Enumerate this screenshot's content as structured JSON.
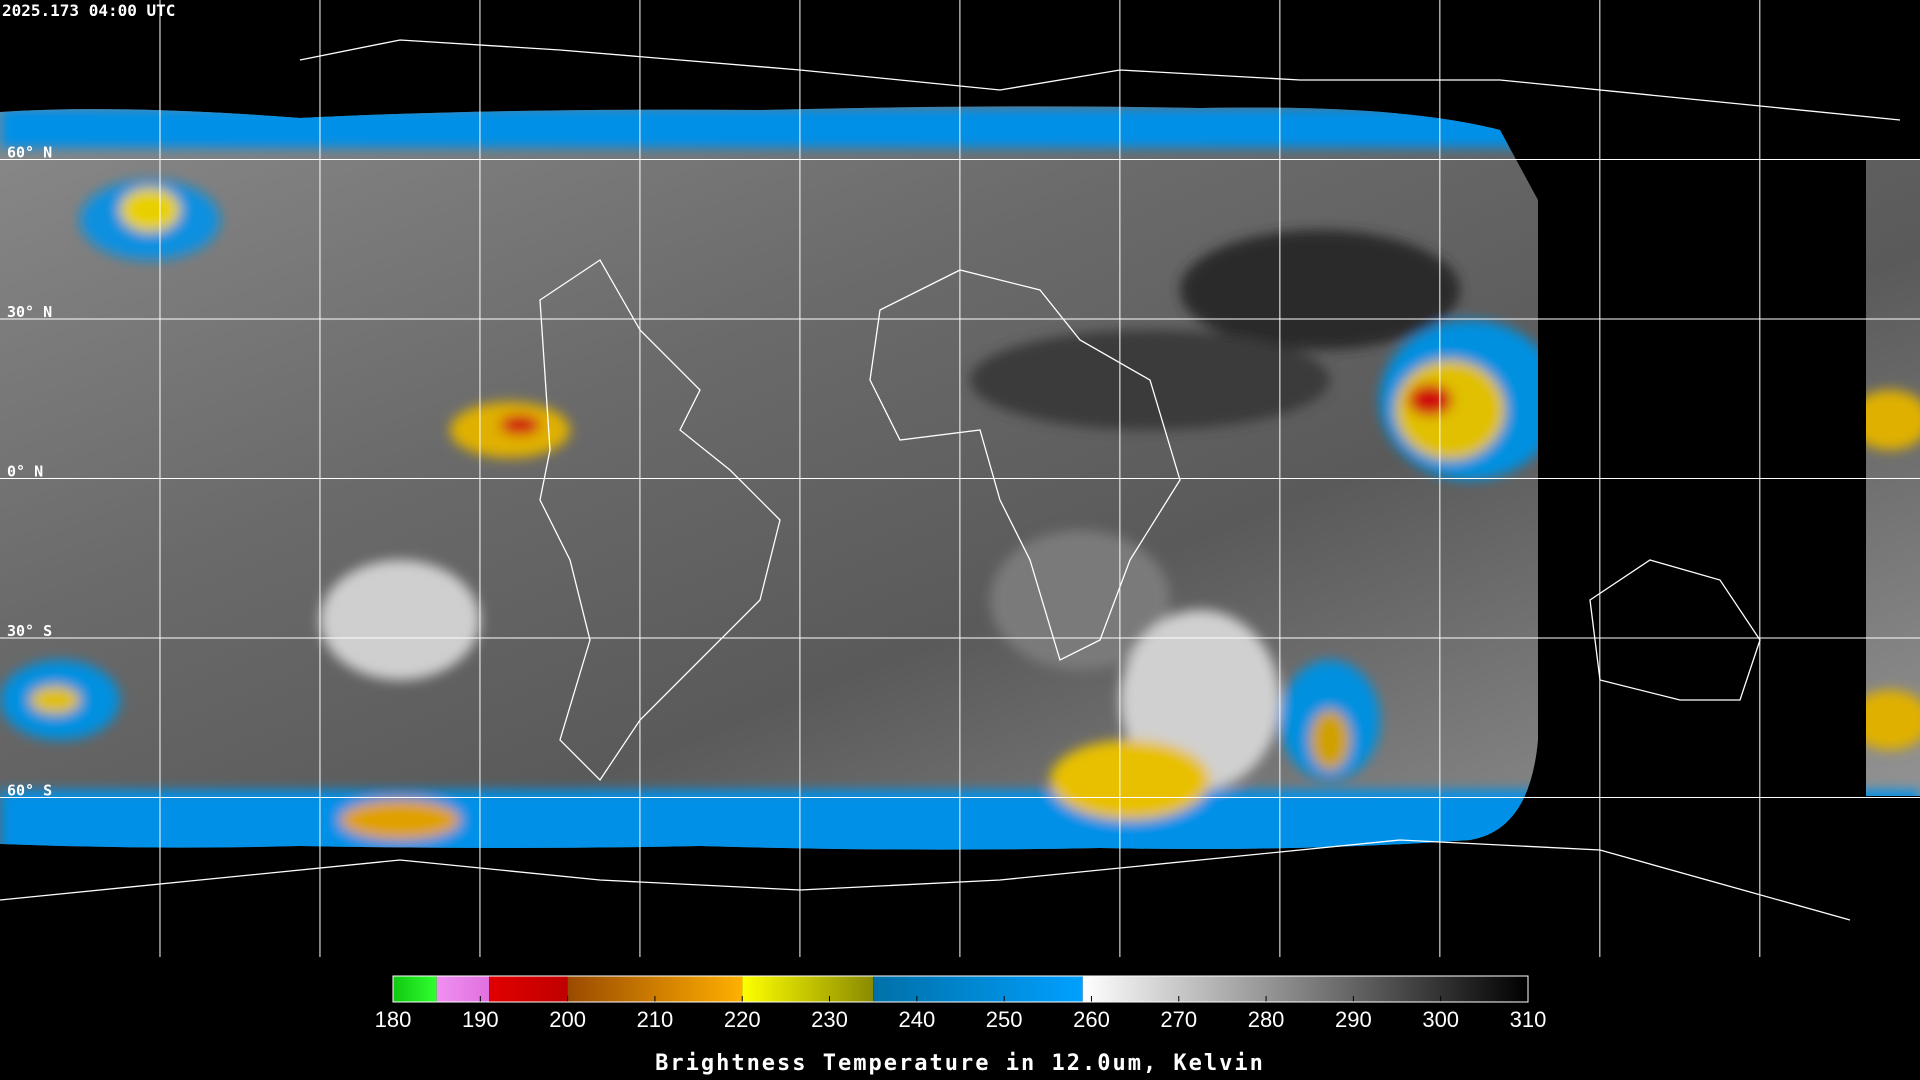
{
  "header": {
    "timestamp": "2025.173 04:00 UTC"
  },
  "grid": {
    "latitudes": [
      {
        "value": 60,
        "label": "60° N"
      },
      {
        "value": 30,
        "label": "30° N"
      },
      {
        "value": 0,
        "label": "0° N"
      },
      {
        "value": -30,
        "label": "30° S"
      },
      {
        "value": -60,
        "label": "60° S"
      }
    ]
  },
  "colorbar": {
    "title": "Brightness Temperature in 12.0um, Kelvin",
    "range": [
      180,
      310
    ],
    "ticks": [
      180,
      190,
      200,
      210,
      220,
      230,
      240,
      250,
      260,
      270,
      280,
      290,
      300,
      310
    ],
    "segments": [
      {
        "from": 180,
        "to": 185,
        "start": "#10c810",
        "end": "#30ff30"
      },
      {
        "from": 185,
        "to": 191,
        "start": "#f090f0",
        "end": "#e070e0"
      },
      {
        "from": 191,
        "to": 200,
        "start": "#e00000",
        "end": "#c00000"
      },
      {
        "from": 200,
        "to": 220,
        "start": "#9a4a00",
        "end": "#ffb000"
      },
      {
        "from": 220,
        "to": 235,
        "start": "#ffff00",
        "end": "#8a8a00"
      },
      {
        "from": 235,
        "to": 259,
        "start": "#0070a8",
        "end": "#00a0ff"
      },
      {
        "from": 259,
        "to": 310,
        "start": "#ffffff",
        "end": "#000000"
      }
    ]
  }
}
